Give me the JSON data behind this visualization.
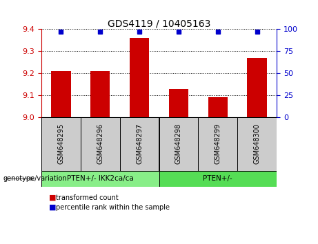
{
  "title": "GDS4119 / 10405163",
  "categories": [
    "GSM648295",
    "GSM648296",
    "GSM648297",
    "GSM648298",
    "GSM648299",
    "GSM648300"
  ],
  "bar_values": [
    9.21,
    9.21,
    9.36,
    9.13,
    9.09,
    9.27
  ],
  "percentile_values": [
    97,
    97,
    97,
    97,
    97,
    97
  ],
  "ylim_left": [
    9.0,
    9.4
  ],
  "ylim_right": [
    0,
    100
  ],
  "yticks_left": [
    9.0,
    9.1,
    9.2,
    9.3,
    9.4
  ],
  "yticks_right": [
    0,
    25,
    50,
    75,
    100
  ],
  "bar_color": "#cc0000",
  "dot_color": "#0000cc",
  "group1_label": "PTEN+/- IKK2ca/ca",
  "group2_label": "PTEN+/-",
  "group1_color": "#88ee88",
  "group2_color": "#55dd55",
  "gray_bg": "#cccccc",
  "legend_red_label": "transformed count",
  "legend_blue_label": "percentile rank within the sample",
  "genotype_label": "genotype/variation",
  "left_axis_color": "#cc0000",
  "right_axis_color": "#0000cc",
  "dot_pct": 97,
  "title_fontsize": 10,
  "tick_fontsize": 8,
  "label_fontsize": 8
}
